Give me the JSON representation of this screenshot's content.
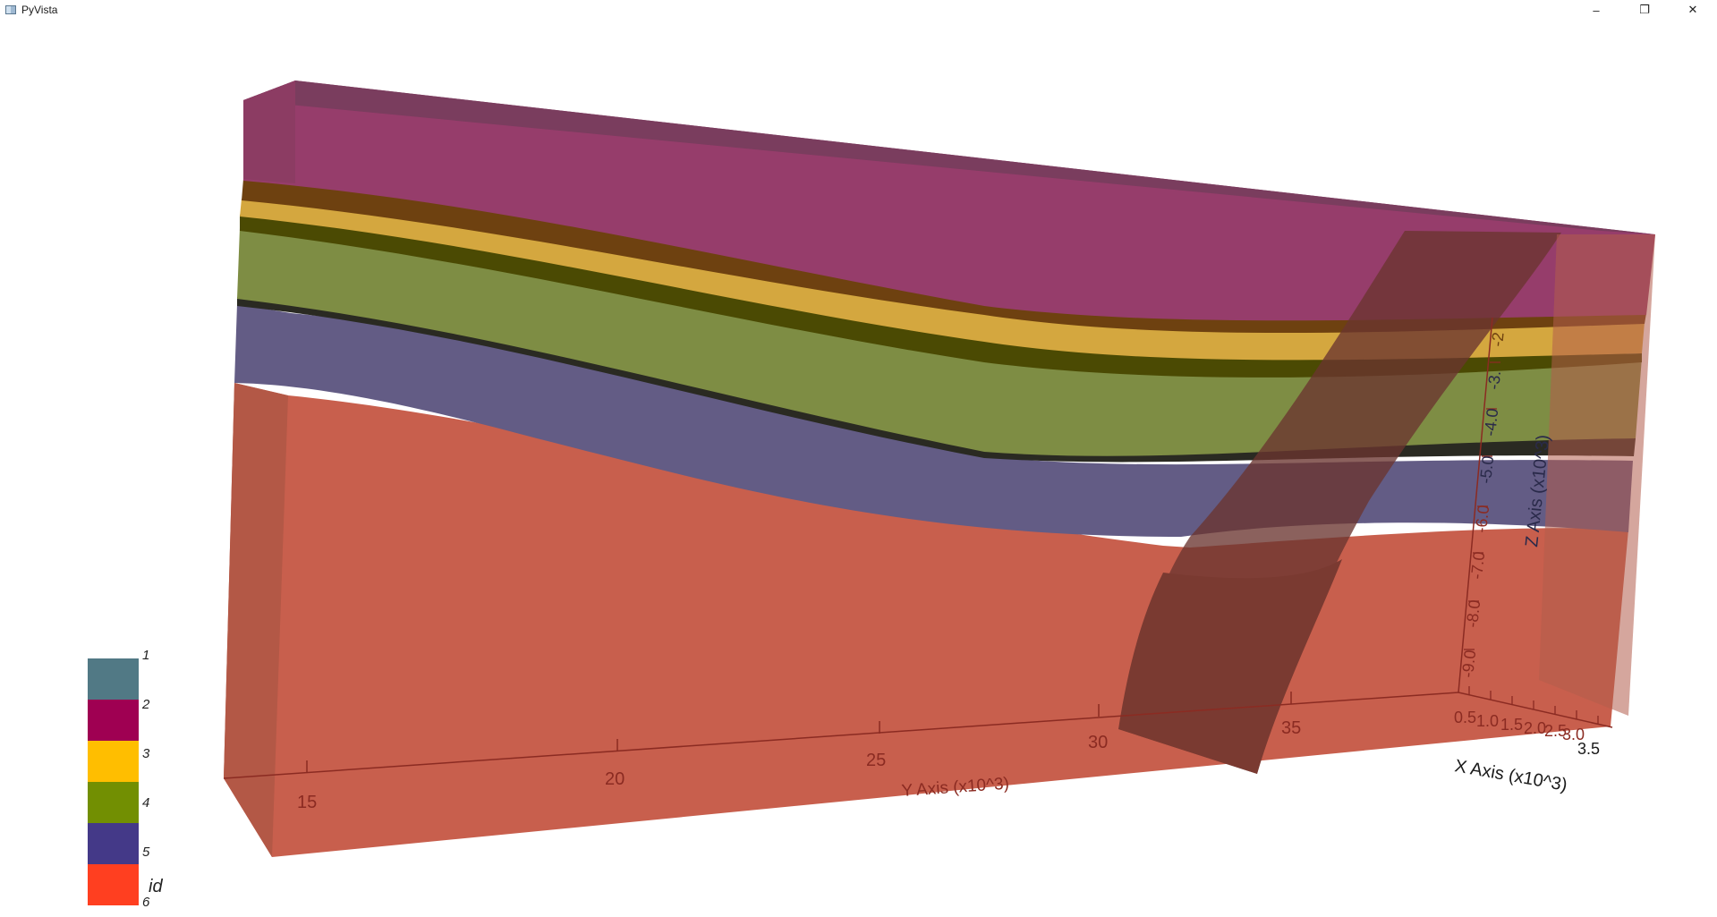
{
  "window": {
    "title": "PyVista",
    "minimize_glyph": "–",
    "maximize_glyph": "❐",
    "close_glyph": "✕"
  },
  "axes": {
    "y_axis_title": "Y Axis (x10^3)",
    "y_ticks": [
      "15",
      "20",
      "25",
      "30",
      "35"
    ],
    "x_axis_title": "X Axis (x10^3)",
    "x_ticks": [
      "0.5",
      "1.0",
      "1.5",
      "2.0",
      "2.5",
      "3.0",
      "3.5"
    ],
    "z_axis_title": "Z Axis (x10^3)",
    "z_ticks": [
      "-9.0",
      "-8.0",
      "-7.0",
      "-6.0",
      "-5.0",
      "-4.0",
      "-3.",
      "-2"
    ]
  },
  "scalar_bar": {
    "title": "id",
    "labels": [
      "1",
      "2",
      "3",
      "4",
      "5",
      "6"
    ],
    "colors": [
      "#517985",
      "#9f0052",
      "#ffbe00",
      "#728f02",
      "#443988",
      "#ff3f20"
    ]
  },
  "layer_colors": {
    "top_unit": "#963d6b",
    "unit_brown": "#6e4110",
    "unit_yellow": "#d4a73f",
    "unit_dark_band": "#4b4a03",
    "unit_green": "#7e8d44",
    "unit_purple": "#635c85",
    "basement": "#c85f4d",
    "fault": "#6a3530"
  }
}
